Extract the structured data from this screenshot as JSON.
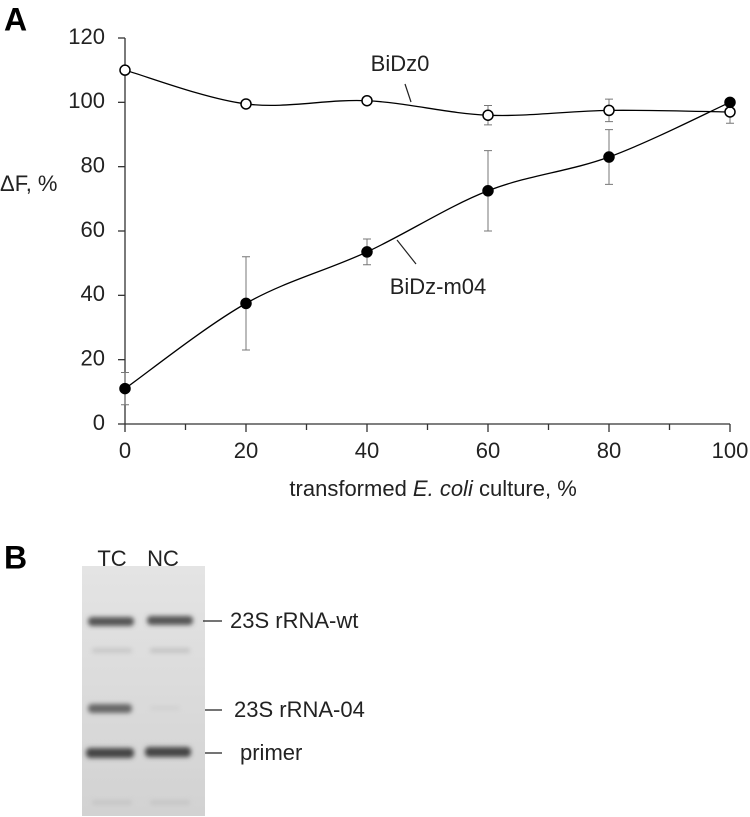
{
  "panel_labels": [
    "A",
    "B"
  ],
  "chart_data": {
    "type": "line",
    "x": [
      0,
      20,
      40,
      60,
      80,
      100
    ],
    "xlim": [
      0,
      100
    ],
    "xticks": [
      0,
      20,
      40,
      60,
      80,
      100
    ],
    "xminor_ticks": [
      10,
      30,
      50,
      70,
      90
    ],
    "ylim": [
      0,
      120
    ],
    "yticks": [
      0,
      20,
      40,
      60,
      80,
      100,
      120
    ],
    "ylabel": "ΔF, %",
    "xlabel": [
      "transformed ",
      "E. coli",
      " culture, %"
    ],
    "series": [
      {
        "name": "BiDz0",
        "color": "#000000",
        "marker_fill": "#ffffff",
        "values": [
          110,
          99.5,
          100.5,
          96,
          97.5,
          97
        ],
        "errors": [
          0,
          0,
          0,
          3,
          3.5,
          3.5
        ]
      },
      {
        "name": "BiDz-m04",
        "color": "#000000",
        "marker_fill": "#000000",
        "values": [
          11,
          37.5,
          53.5,
          72.5,
          83,
          100
        ],
        "errors": [
          5,
          14.5,
          4,
          12.5,
          8.5,
          0
        ]
      }
    ]
  },
  "gel": {
    "lanes": [
      "TC",
      "NC"
    ],
    "bands": [
      "23S rRNA-wt",
      "23S rRNA-04",
      "primer"
    ]
  }
}
